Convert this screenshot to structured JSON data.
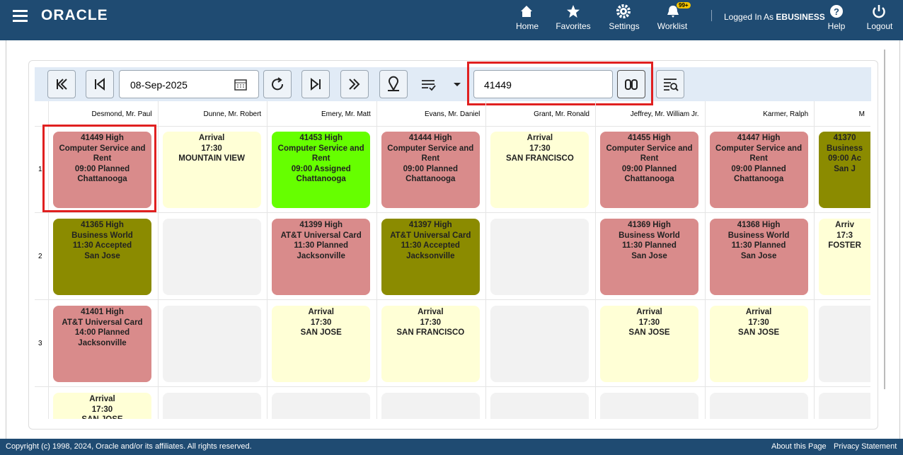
{
  "header": {
    "logo": "ORACLE",
    "nav": [
      "Home",
      "Favorites",
      "Settings",
      "Worklist"
    ],
    "badge": "99+",
    "logged_in": "Logged In As",
    "user": "EBUSINESS",
    "help": "Help",
    "logout": "Logout"
  },
  "toolbar": {
    "date": "08-Sep-2025",
    "search": "41449"
  },
  "grid": {
    "columns": [
      "Desmond, Mr. Paul",
      "Dunne, Mr. Robert",
      "Emery, Mr. Matt",
      "Evans, Mr. Daniel",
      "Grant, Mr. Ronald",
      "Jeffrey, Mr. William Jr.",
      "Karmer, Ralph",
      "M"
    ],
    "rows": [
      {
        "label": "1",
        "cells": [
          {
            "color": "#d98b8b",
            "lines": [
              "41449 High",
              "Computer Service and",
              "Rent",
              "09:00 Planned",
              "Chattanooga"
            ]
          },
          {
            "color": "#ffffd6",
            "lines": [
              "Arrival",
              "17:30",
              "MOUNTAIN VIEW"
            ]
          },
          {
            "color": "#66ff00",
            "lines": [
              "41453 High",
              "Computer Service and",
              "Rent",
              "09:00 Assigned",
              "Chattanooga"
            ]
          },
          {
            "color": "#d98b8b",
            "lines": [
              "41444 High",
              "Computer Service and",
              "Rent",
              "09:00 Planned",
              "Chattanooga"
            ]
          },
          {
            "color": "#ffffd6",
            "lines": [
              "Arrival",
              "17:30",
              "SAN FRANCISCO"
            ]
          },
          {
            "color": "#d98b8b",
            "lines": [
              "41455 High",
              "Computer Service and",
              "Rent",
              "09:00 Planned",
              "Chattanooga"
            ]
          },
          {
            "color": "#d98b8b",
            "lines": [
              "41447 High",
              "Computer Service and",
              "Rent",
              "09:00 Planned",
              "Chattanooga"
            ]
          },
          {
            "color": "#8b8b00",
            "lines": [
              "41370",
              "Business",
              "09:00 Ac",
              "San J"
            ]
          }
        ]
      },
      {
        "label": "2",
        "cells": [
          {
            "color": "#8b8b00",
            "lines": [
              "41365 High",
              "Business World",
              "11:30 Accepted",
              "San Jose"
            ]
          },
          {
            "color": "#f2f2f2",
            "lines": []
          },
          {
            "color": "#d98b8b",
            "lines": [
              "41399 High",
              "AT&T Universal Card",
              "11:30 Planned",
              "Jacksonville"
            ]
          },
          {
            "color": "#8b8b00",
            "lines": [
              "41397 High",
              "AT&T Universal Card",
              "11:30 Accepted",
              "Jacksonville"
            ]
          },
          {
            "color": "#f2f2f2",
            "lines": []
          },
          {
            "color": "#d98b8b",
            "lines": [
              "41369 High",
              "Business World",
              "11:30 Planned",
              "San Jose"
            ]
          },
          {
            "color": "#d98b8b",
            "lines": [
              "41368 High",
              "Business World",
              "11:30 Planned",
              "San Jose"
            ]
          },
          {
            "color": "#ffffd6",
            "lines": [
              "Arriv",
              "17:3",
              "FOSTER"
            ]
          }
        ]
      },
      {
        "label": "3",
        "cells": [
          {
            "color": "#d98b8b",
            "lines": [
              "41401 High",
              "AT&T Universal Card",
              "14:00 Planned",
              "Jacksonville"
            ]
          },
          {
            "color": "#f2f2f2",
            "lines": []
          },
          {
            "color": "#ffffd6",
            "lines": [
              "Arrival",
              "17:30",
              "SAN JOSE"
            ]
          },
          {
            "color": "#ffffd6",
            "lines": [
              "Arrival",
              "17:30",
              "SAN FRANCISCO"
            ]
          },
          {
            "color": "#f2f2f2",
            "lines": []
          },
          {
            "color": "#ffffd6",
            "lines": [
              "Arrival",
              "17:30",
              "SAN JOSE"
            ]
          },
          {
            "color": "#ffffd6",
            "lines": [
              "Arrival",
              "17:30",
              "SAN JOSE"
            ]
          },
          {
            "color": "#f2f2f2",
            "lines": []
          }
        ]
      },
      {
        "cells": [
          {
            "color": "#ffffd6",
            "lines": [
              "Arrival",
              "17:30",
              "SAN JOSE"
            ]
          },
          {
            "color": "#f2f2f2",
            "lines": []
          },
          {
            "color": "#f2f2f2",
            "lines": []
          },
          {
            "color": "#f2f2f2",
            "lines": []
          },
          {
            "color": "#f2f2f2",
            "lines": []
          },
          {
            "color": "#f2f2f2",
            "lines": []
          },
          {
            "color": "#f2f2f2",
            "lines": []
          },
          {
            "color": "#f2f2f2",
            "lines": []
          }
        ]
      }
    ]
  },
  "footer": {
    "copyright": "Copyright (c) 1998, 2024, Oracle and/or its affiliates. All rights reserved.",
    "links": [
      "About this Page",
      "Privacy Statement"
    ]
  }
}
